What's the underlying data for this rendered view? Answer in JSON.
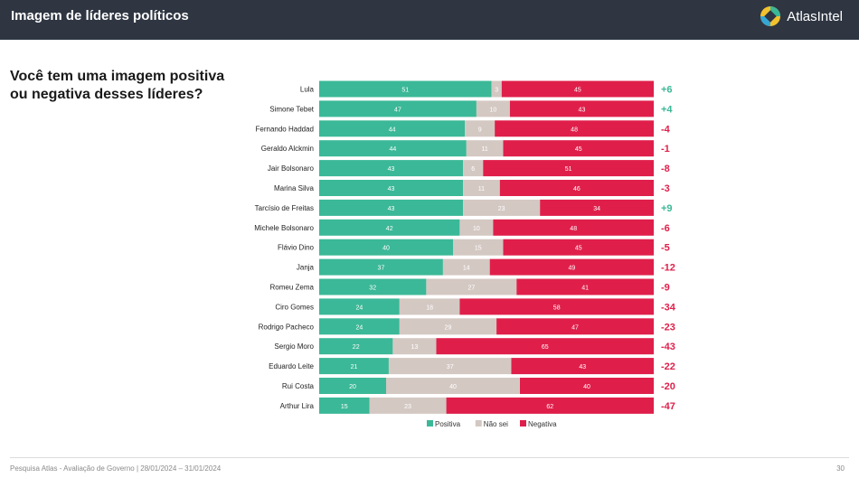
{
  "header": {
    "title": "Imagem de líderes políticos",
    "brand": "AtlasIntel"
  },
  "question": "Você tem uma imagem positiva ou negativa desses líderes?",
  "colors": {
    "positive": "#3bb897",
    "unsure": "#d4c8c3",
    "negative": "#df1f4a",
    "net_positive": "#3bb897",
    "net_negative": "#df1f4a",
    "header_bg": "#2f3642"
  },
  "chart_data": {
    "type": "bar",
    "orientation": "horizontal",
    "stacked": true,
    "categories": [
      "Lula",
      "Simone Tebet",
      "Fernando Haddad",
      "Geraldo Alckmin",
      "Jair Bolsonaro",
      "Marina Silva",
      "Tarcísio de Freitas",
      "Michele Bolsonaro",
      "Flávio Dino",
      "Janja",
      "Romeu Zema",
      "Ciro Gomes",
      "Rodrigo Pacheco",
      "Sergio Moro",
      "Eduardo Leite",
      "Rui Costa",
      "Arthur Lira"
    ],
    "series": [
      {
        "name": "Positiva",
        "values": [
          51,
          47,
          44,
          44,
          43,
          43,
          43,
          42,
          40,
          37,
          32,
          24,
          24,
          22,
          21,
          20,
          15
        ]
      },
      {
        "name": "Não sei",
        "values": [
          3,
          10,
          9,
          11,
          6,
          11,
          23,
          10,
          15,
          14,
          27,
          18,
          29,
          13,
          37,
          40,
          23
        ]
      },
      {
        "name": "Negativa",
        "values": [
          45,
          43,
          48,
          45,
          51,
          46,
          34,
          48,
          45,
          49,
          41,
          58,
          47,
          65,
          43,
          40,
          62
        ]
      }
    ],
    "net": [
      "+6",
      "+4",
      "-4",
      "-1",
      "-8",
      "-3",
      "+9",
      "-6",
      "-5",
      "-12",
      "-9",
      "-34",
      "-23",
      "-43",
      "-22",
      "-20",
      "-47"
    ],
    "legend": {
      "position": "bottom",
      "entries": [
        "Positiva",
        "Não sei",
        "Negativa"
      ]
    }
  },
  "footer": {
    "source": "Pesquisa Atlas - Avaliação de Governo | 28/01/2024 – 31/01/2024",
    "page": "30"
  }
}
